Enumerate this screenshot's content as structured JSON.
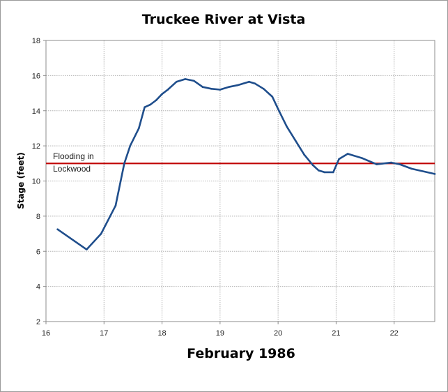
{
  "chart_data": {
    "type": "line",
    "title": "Truckee River at Vista",
    "xlabel": "February 1986",
    "ylabel": "Stage (feet)",
    "xlim": [
      16,
      22.7
    ],
    "ylim": [
      2,
      18
    ],
    "x_ticks": [
      16,
      17,
      18,
      19,
      20,
      21,
      22
    ],
    "y_ticks": [
      2,
      4,
      6,
      8,
      10,
      12,
      14,
      16,
      18
    ],
    "grid": true,
    "series": [
      {
        "color": "#1f4e8c",
        "x": [
          16.2,
          16.7,
          16.95,
          17.2,
          17.35,
          17.45,
          17.6,
          17.7,
          17.8,
          17.9,
          18.0,
          18.1,
          18.25,
          18.4,
          18.55,
          18.7,
          18.85,
          19.0,
          19.15,
          19.3,
          19.4,
          19.5,
          19.6,
          19.75,
          19.9,
          20.0,
          20.15,
          20.3,
          20.45,
          20.6,
          20.7,
          20.8,
          20.95,
          21.05,
          21.2,
          21.45,
          21.7,
          21.95,
          22.1,
          22.3,
          22.7
        ],
        "y": [
          7.25,
          6.1,
          7.0,
          8.6,
          11.0,
          12.0,
          13.0,
          14.2,
          14.35,
          14.6,
          14.95,
          15.2,
          15.65,
          15.8,
          15.7,
          15.35,
          15.25,
          15.2,
          15.35,
          15.45,
          15.55,
          15.65,
          15.55,
          15.25,
          14.8,
          14.1,
          13.1,
          12.3,
          11.5,
          10.9,
          10.6,
          10.5,
          10.5,
          11.25,
          11.55,
          11.3,
          10.95,
          11.05,
          10.95,
          10.7,
          10.4
        ]
      }
    ],
    "reference_line": {
      "y": 11,
      "color": "#c00000",
      "label_line1": "Flooding in",
      "label_line2": "Lockwood"
    }
  }
}
